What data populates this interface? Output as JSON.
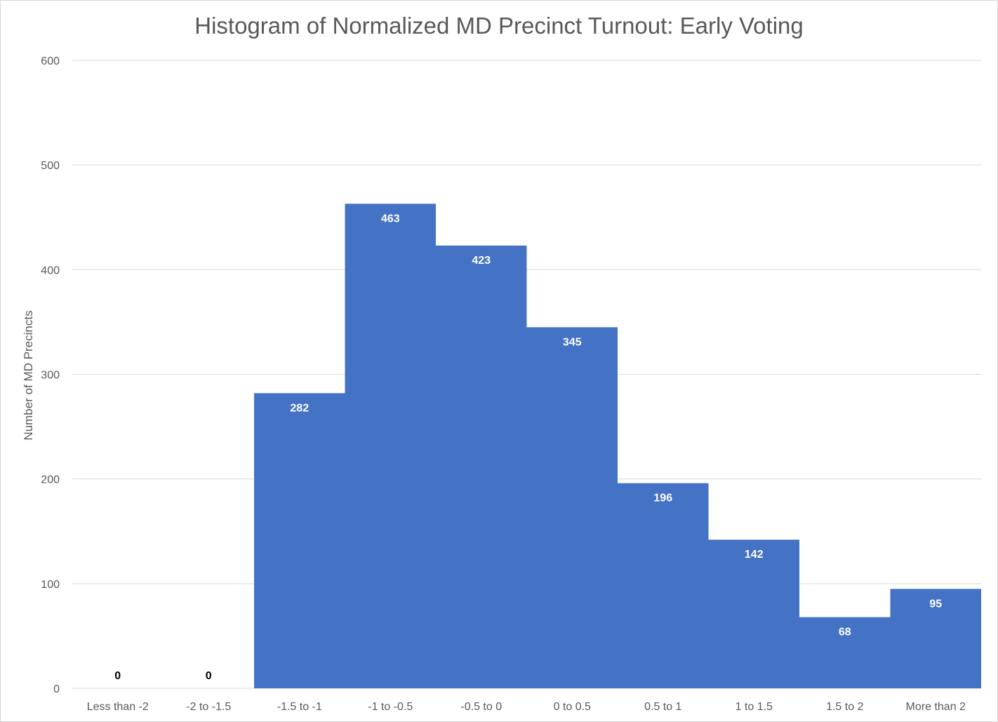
{
  "chart_data": {
    "type": "bar",
    "title": "Histogram of Normalized MD Precinct Turnout: Early Voting",
    "xlabel": "",
    "ylabel": "Number of MD Precincts",
    "categories": [
      "Less than -2",
      "-2 to -1.5",
      "-1.5 to -1",
      "-1 to -0.5",
      "-0.5 to 0",
      "0 to 0.5",
      "0.5 to 1",
      "1 to 1.5",
      "1.5 to 2",
      "More than 2"
    ],
    "values": [
      0,
      0,
      282,
      463,
      423,
      345,
      196,
      142,
      68,
      95
    ],
    "ylim": [
      0,
      600
    ],
    "yticks": [
      0,
      100,
      200,
      300,
      400,
      500,
      600
    ],
    "grid": true,
    "legend": "none",
    "bar_color": "#4472c4",
    "label_color_inside": "#ffffff",
    "label_color_outside": "#000000"
  }
}
